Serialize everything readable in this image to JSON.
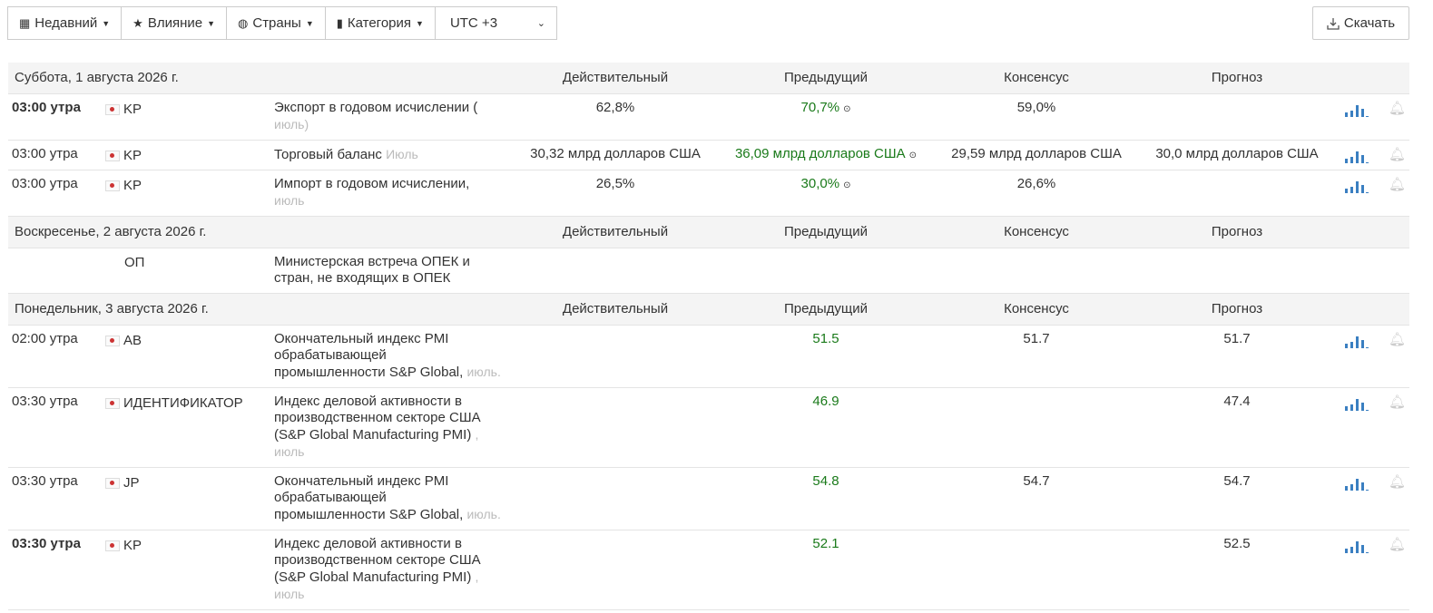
{
  "toolbar": {
    "buttons": [
      "Недавний",
      "Влияние",
      "Страны",
      "Категория"
    ],
    "timezone": "UTC +3",
    "download": "Скачать"
  },
  "days": [
    {
      "date": "Суббота, 1 августа 2026 г.",
      "columns": [
        "Действительный",
        "Предыдущий",
        "Консенсус",
        "Прогноз"
      ],
      "events": [
        {
          "time": "03:00 утра",
          "bold": true,
          "flag": true,
          "country": "KP",
          "title": "Экспорт в годовом исчислении (",
          "period": "июль)",
          "actual": "62,8%",
          "previous": "70,7%",
          "consensus": "59,0%",
          "chart": true
        },
        {
          "time": "03:00 утра",
          "bold": false,
          "flag": true,
          "country": "KP",
          "title": "Торговый баланс",
          "period": "Июль",
          "actual": "30,32 млрд долларов США",
          "previous": "36,09 млрд долларов США",
          "consensus": "29,59 млрд долларов США",
          "forecast": "30,0 млрд долларов США",
          "chart": true
        },
        {
          "time": "03:00 утра",
          "bold": false,
          "flag": true,
          "country": "KP",
          "title": "Импорт в годовом исчислении,",
          "period": "июль",
          "actual": "26,5%",
          "previous": "30,0%",
          "consensus": "26,6%",
          "chart": true
        }
      ]
    },
    {
      "date": "Воскресенье, 2 августа 2026 г.",
      "columns": [
        "Действительный",
        "Предыдущий",
        "Консенсус",
        "Прогноз"
      ],
      "events": [
        {
          "bold": false,
          "flag": false,
          "country": "ОП",
          "title": "Министерская встреча ОПЕК и стран, не входящих в ОПЕК",
          "chart": false
        }
      ]
    },
    {
      "date": "Понедельник, 3 августа 2026 г.",
      "columns": [
        "Действительный",
        "Предыдущий",
        "Консенсус",
        "Прогноз"
      ],
      "events": [
        {
          "time": "02:00 утра",
          "bold": false,
          "flag": true,
          "country": "AB",
          "title": "Окончательный индекс PMI обрабатывающей промышленности S&P Global,",
          "period": "июль.",
          "previous": "51.5",
          "consensus": "51.7",
          "forecast": "51.7",
          "chart": true
        },
        {
          "time": "03:30 утра",
          "bold": false,
          "flag": true,
          "country": "ИДЕНТИФИКАТОР",
          "title": "Индекс деловой активности в производственном секторе США (S&P Global Manufacturing PMI)",
          "period": ", июль",
          "previous": "46.9",
          "forecast": "47.4",
          "chart": true
        },
        {
          "time": "03:30 утра",
          "bold": false,
          "flag": true,
          "country": "JP",
          "title": "Окончательный индекс PMI обрабатывающей промышленности S&P Global,",
          "period": "июль.",
          "previous": "54.8",
          "consensus": "54.7",
          "forecast": "54.7",
          "chart": true
        },
        {
          "time": "03:30 утра",
          "bold": true,
          "flag": true,
          "country": "KP",
          "title": "Индекс деловой активности в производственном секторе США (S&P Global Manufacturing PMI)",
          "period": ", июль",
          "previous": "52.1",
          "forecast": "52.5",
          "chart": true
        }
      ]
    }
  ]
}
